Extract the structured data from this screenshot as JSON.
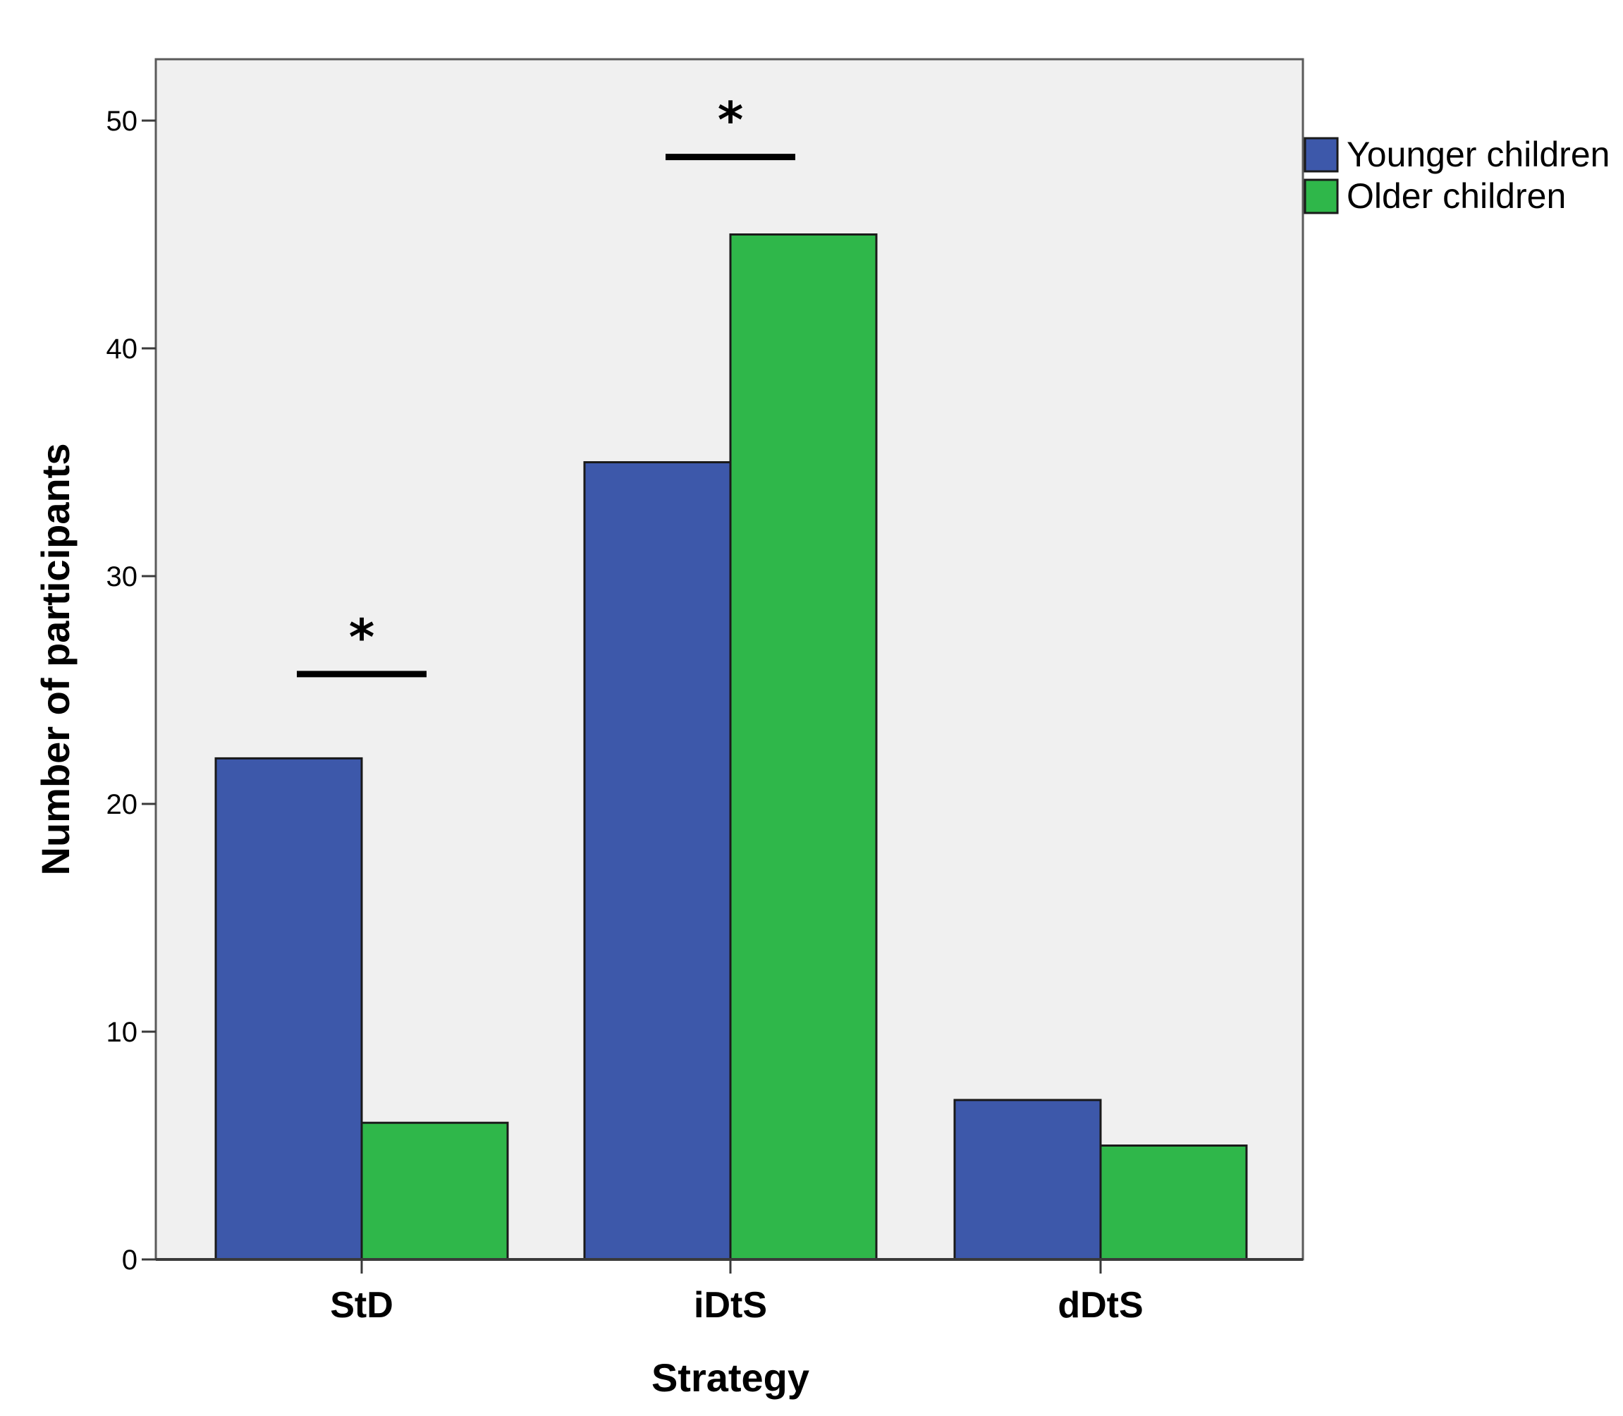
{
  "chart_data": {
    "type": "bar",
    "title": "",
    "xlabel": "Strategy",
    "ylabel": "Number of participants",
    "categories": [
      "StD",
      "iDtS",
      "dDtS"
    ],
    "series": [
      {
        "name": "Younger children",
        "color": "#3d58aa",
        "values": [
          22,
          35,
          7
        ]
      },
      {
        "name": "Older children",
        "color": "#2fb74a",
        "values": [
          6,
          45,
          5
        ]
      }
    ],
    "ylim": [
      0,
      52.5
    ],
    "yticks": [
      0,
      10,
      20,
      30,
      40,
      50
    ],
    "ytick_labels": [
      "0",
      "10",
      "20",
      "30",
      "40",
      "50"
    ],
    "grid": false,
    "legend_position": "top-right outside",
    "annotations": [
      {
        "category": "StD",
        "text": "*",
        "bar_value": 25.7
      },
      {
        "category": "iDtS",
        "text": "*",
        "bar_value": 48.4
      }
    ],
    "background": "#f0f0f0"
  }
}
